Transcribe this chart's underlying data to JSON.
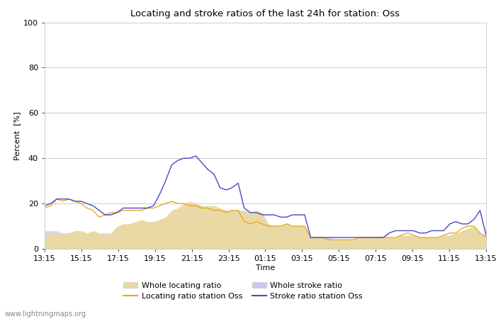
{
  "title": "Locating and stroke ratios of the last 24h for station: Oss",
  "ylabel": "Percent  [%]",
  "xlabel": "Time",
  "watermark": "www.lightningmaps.org",
  "ylim": [
    0,
    100
  ],
  "yticks": [
    0,
    20,
    40,
    60,
    80,
    100
  ],
  "x_labels": [
    "13:15",
    "15:15",
    "17:15",
    "19:15",
    "21:15",
    "23:15",
    "01:15",
    "03:15",
    "05:15",
    "07:15",
    "09:15",
    "11:15",
    "13:15"
  ],
  "colors": {
    "whole_locating_fill": "#e8d8a0",
    "whole_stroke_fill": "#c8c8f0",
    "locating_station": "#e8a820",
    "stroke_station": "#4848c8"
  },
  "whole_locating": [
    6,
    7,
    7,
    6,
    7,
    8,
    8,
    7,
    8,
    7,
    6,
    7,
    10,
    11,
    11,
    12,
    13,
    12,
    12,
    13,
    14,
    17,
    18,
    20,
    21,
    20,
    19,
    19,
    19,
    18,
    17,
    17,
    17,
    17,
    16,
    17,
    16,
    11,
    10,
    10,
    11,
    10,
    10,
    10,
    5,
    5,
    5,
    4,
    4,
    4,
    4,
    4,
    5,
    5,
    5,
    5,
    5,
    5,
    5,
    6,
    6,
    6,
    5,
    5,
    5,
    5,
    6,
    6,
    7,
    8,
    9,
    10,
    6,
    5
  ],
  "whole_stroke": [
    8,
    8,
    8,
    7,
    7,
    7,
    7,
    7,
    7,
    7,
    7,
    7,
    7,
    7,
    8,
    7,
    8,
    8,
    8,
    8,
    8,
    9,
    9,
    9,
    9,
    9,
    9,
    9,
    9,
    9,
    9,
    9,
    9,
    9,
    9,
    9,
    9,
    9,
    9,
    9,
    9,
    9,
    10,
    10,
    5,
    5,
    5,
    5,
    4,
    4,
    4,
    4,
    4,
    4,
    4,
    4,
    4,
    4,
    4,
    4,
    5,
    5,
    5,
    5,
    5,
    5,
    5,
    6,
    7,
    7,
    8,
    9,
    7,
    6
  ],
  "locating_station": [
    18,
    19,
    22,
    21,
    22,
    21,
    20,
    18,
    17,
    14,
    15,
    16,
    16,
    17,
    17,
    17,
    17,
    18,
    18,
    19,
    20,
    21,
    20,
    20,
    19,
    19,
    18,
    18,
    17,
    17,
    16,
    17,
    17,
    12,
    11,
    12,
    11,
    10,
    10,
    10,
    11,
    10,
    10,
    10,
    5,
    5,
    5,
    4,
    4,
    4,
    4,
    4,
    5,
    5,
    5,
    5,
    5,
    5,
    5,
    6,
    7,
    6,
    5,
    5,
    5,
    5,
    6,
    7,
    7,
    9,
    10,
    10,
    7,
    5
  ],
  "stroke_station": [
    19,
    20,
    22,
    22,
    22,
    21,
    21,
    20,
    19,
    17,
    15,
    15,
    16,
    18,
    18,
    18,
    18,
    18,
    19,
    24,
    30,
    37,
    39,
    40,
    40,
    41,
    38,
    35,
    33,
    27,
    26,
    27,
    29,
    18,
    16,
    16,
    15,
    15,
    15,
    14,
    14,
    15,
    15,
    15,
    5,
    5,
    5,
    5,
    5,
    5,
    5,
    5,
    5,
    5,
    5,
    5,
    5,
    7,
    8,
    8,
    8,
    8,
    7,
    7,
    8,
    8,
    8,
    11,
    12,
    11,
    11,
    13,
    17,
    6
  ]
}
